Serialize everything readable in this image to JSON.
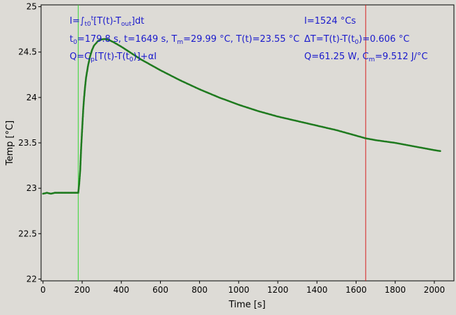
{
  "chart_data": {
    "type": "scatter",
    "xlabel": "Time [s]",
    "ylabel": "Temp [°C]",
    "xlim": [
      -10,
      2100
    ],
    "ylim": [
      21.98,
      25.02
    ],
    "xticks": [
      0,
      200,
      400,
      600,
      800,
      1000,
      1200,
      1400,
      1600,
      1800,
      2000
    ],
    "yticks": [
      22,
      22.5,
      23,
      23.5,
      24,
      24.5,
      25
    ],
    "ytick_labels": [
      "22",
      "22.5",
      "23",
      "23.5",
      "24",
      "24.5",
      "25"
    ],
    "grid": false,
    "series": [
      {
        "color": "#1f7a1f",
        "marker": "point",
        "points": [
          [
            0,
            22.94
          ],
          [
            20,
            22.95
          ],
          [
            40,
            22.94
          ],
          [
            60,
            22.95
          ],
          [
            80,
            22.95
          ],
          [
            100,
            22.95
          ],
          [
            120,
            22.95
          ],
          [
            140,
            22.95
          ],
          [
            160,
            22.95
          ],
          [
            180,
            22.95
          ],
          [
            185,
            23.05
          ],
          [
            190,
            23.2
          ],
          [
            195,
            23.45
          ],
          [
            200,
            23.65
          ],
          [
            205,
            23.85
          ],
          [
            210,
            24.0
          ],
          [
            215,
            24.12
          ],
          [
            220,
            24.22
          ],
          [
            230,
            24.35
          ],
          [
            240,
            24.45
          ],
          [
            250,
            24.52
          ],
          [
            260,
            24.57
          ],
          [
            280,
            24.62
          ],
          [
            300,
            24.64
          ],
          [
            320,
            24.645
          ],
          [
            340,
            24.63
          ],
          [
            360,
            24.61
          ],
          [
            400,
            24.56
          ],
          [
            450,
            24.49
          ],
          [
            500,
            24.42
          ],
          [
            550,
            24.36
          ],
          [
            600,
            24.3
          ],
          [
            700,
            24.19
          ],
          [
            800,
            24.09
          ],
          [
            900,
            24.0
          ],
          [
            1000,
            23.92
          ],
          [
            1100,
            23.85
          ],
          [
            1200,
            23.79
          ],
          [
            1300,
            23.74
          ],
          [
            1400,
            23.69
          ],
          [
            1500,
            23.64
          ],
          [
            1600,
            23.58
          ],
          [
            1649,
            23.55
          ],
          [
            1700,
            23.53
          ],
          [
            1800,
            23.5
          ],
          [
            1900,
            23.46
          ],
          [
            2000,
            23.42
          ],
          [
            2030,
            23.41
          ]
        ]
      }
    ],
    "vlines": [
      {
        "x": 179.8,
        "color": "#33d633"
      },
      {
        "x": 1649,
        "color": "#d62020"
      }
    ],
    "annotation_color": "#1a1acc",
    "annotations": {
      "left": {
        "l1": {
          "a": "I=∫",
          "b": "t0",
          "c": "t",
          "d": "[T(t)-T",
          "e": "out",
          "f": "]dt"
        },
        "l2": {
          "a": "t",
          "b": "0",
          "c": "=179.8 s,   t=1649 s,   T",
          "d": "m",
          "e": "=29.99 °C,  T(t)=23.55 °C"
        },
        "l3": {
          "a": "Q=C",
          "b": "p",
          "c": "[T(t)-T(t",
          "d": "0",
          "e": ")]+αI"
        }
      },
      "right": {
        "l1": "I=1524 °Cs",
        "l2": {
          "a": "ΔT=T(t)-T(t",
          "b": "0",
          "c": ")=0.606 °C"
        },
        "l3": {
          "a": "Q=61.25 W,   C",
          "b": "m",
          "c": "=9.512 J/°C"
        }
      }
    }
  }
}
